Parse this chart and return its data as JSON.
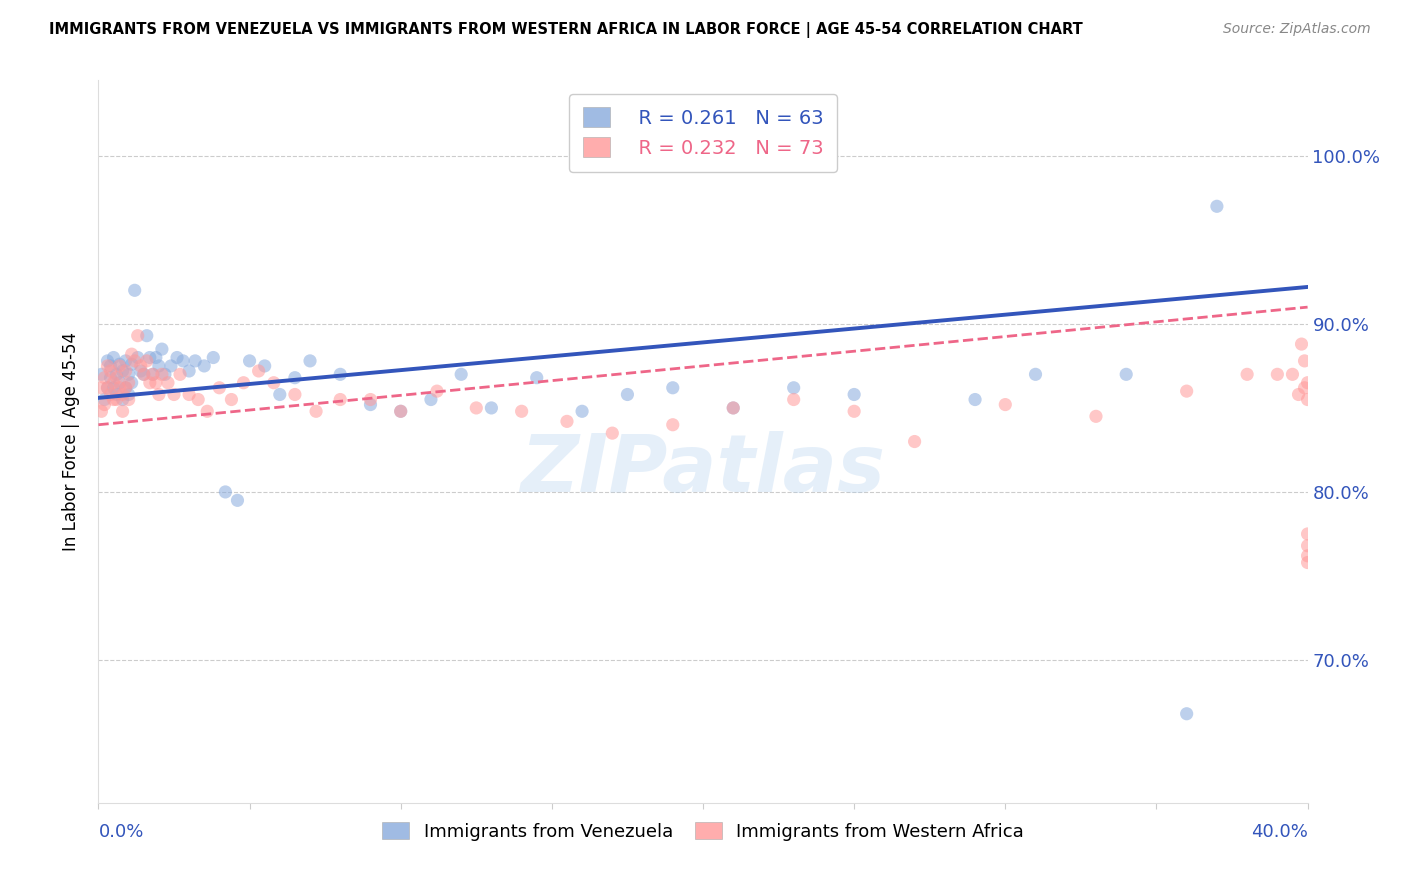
{
  "title": "IMMIGRANTS FROM VENEZUELA VS IMMIGRANTS FROM WESTERN AFRICA IN LABOR FORCE | AGE 45-54 CORRELATION CHART",
  "source": "Source: ZipAtlas.com",
  "ylabel": "In Labor Force | Age 45-54",
  "xlim": [
    0.0,
    0.4
  ],
  "ylim": [
    0.615,
    1.045
  ],
  "yticks": [
    0.7,
    0.8,
    0.9,
    1.0
  ],
  "ytick_labels": [
    "70.0%",
    "80.0%",
    "90.0%",
    "100.0%"
  ],
  "watermark": "ZIPatlas",
  "blue_color": "#88AADD",
  "pink_color": "#FF9999",
  "blue_line_color": "#3355BB",
  "pink_line_color": "#EE6688",
  "axis_color": "#3355BB",
  "legend_R_blue": "R = 0.261",
  "legend_N_blue": "N = 63",
  "legend_R_pink": "R = 0.232",
  "legend_N_pink": "N = 73",
  "ven_x": [
    0.001,
    0.002,
    0.003,
    0.003,
    0.004,
    0.004,
    0.005,
    0.005,
    0.006,
    0.006,
    0.007,
    0.007,
    0.008,
    0.008,
    0.009,
    0.009,
    0.01,
    0.01,
    0.011,
    0.011,
    0.012,
    0.013,
    0.014,
    0.015,
    0.016,
    0.017,
    0.018,
    0.019,
    0.02,
    0.021,
    0.022,
    0.024,
    0.026,
    0.028,
    0.03,
    0.032,
    0.035,
    0.038,
    0.042,
    0.046,
    0.05,
    0.055,
    0.06,
    0.065,
    0.07,
    0.08,
    0.09,
    0.1,
    0.11,
    0.12,
    0.13,
    0.145,
    0.16,
    0.175,
    0.19,
    0.21,
    0.23,
    0.25,
    0.29,
    0.31,
    0.34,
    0.36,
    0.37
  ],
  "ven_y": [
    0.87,
    0.855,
    0.878,
    0.862,
    0.875,
    0.868,
    0.862,
    0.88,
    0.87,
    0.858,
    0.876,
    0.865,
    0.872,
    0.855,
    0.878,
    0.862,
    0.87,
    0.858,
    0.876,
    0.865,
    0.92,
    0.88,
    0.872,
    0.87,
    0.893,
    0.88,
    0.87,
    0.88,
    0.875,
    0.885,
    0.87,
    0.875,
    0.88,
    0.878,
    0.872,
    0.878,
    0.875,
    0.88,
    0.8,
    0.795,
    0.878,
    0.875,
    0.858,
    0.868,
    0.878,
    0.87,
    0.852,
    0.848,
    0.855,
    0.87,
    0.85,
    0.868,
    0.848,
    0.858,
    0.862,
    0.85,
    0.862,
    0.858,
    0.855,
    0.87,
    0.87,
    0.668,
    0.97
  ],
  "waf_x": [
    0.001,
    0.001,
    0.002,
    0.002,
    0.003,
    0.003,
    0.004,
    0.004,
    0.005,
    0.005,
    0.006,
    0.006,
    0.007,
    0.007,
    0.008,
    0.008,
    0.009,
    0.009,
    0.01,
    0.01,
    0.011,
    0.012,
    0.013,
    0.014,
    0.015,
    0.016,
    0.017,
    0.018,
    0.019,
    0.02,
    0.021,
    0.023,
    0.025,
    0.027,
    0.03,
    0.033,
    0.036,
    0.04,
    0.044,
    0.048,
    0.053,
    0.058,
    0.065,
    0.072,
    0.08,
    0.09,
    0.1,
    0.112,
    0.125,
    0.14,
    0.155,
    0.17,
    0.19,
    0.21,
    0.23,
    0.25,
    0.27,
    0.3,
    0.33,
    0.36,
    0.38,
    0.39,
    0.395,
    0.397,
    0.398,
    0.399,
    0.399,
    0.4,
    0.4,
    0.4,
    0.4,
    0.4,
    0.4
  ],
  "waf_y": [
    0.862,
    0.848,
    0.868,
    0.852,
    0.875,
    0.862,
    0.858,
    0.872,
    0.855,
    0.865,
    0.868,
    0.855,
    0.875,
    0.862,
    0.858,
    0.848,
    0.872,
    0.862,
    0.855,
    0.865,
    0.882,
    0.878,
    0.893,
    0.875,
    0.87,
    0.878,
    0.865,
    0.87,
    0.865,
    0.858,
    0.87,
    0.865,
    0.858,
    0.87,
    0.858,
    0.855,
    0.848,
    0.862,
    0.855,
    0.865,
    0.872,
    0.865,
    0.858,
    0.848,
    0.855,
    0.855,
    0.848,
    0.86,
    0.85,
    0.848,
    0.842,
    0.835,
    0.84,
    0.85,
    0.855,
    0.848,
    0.83,
    0.852,
    0.845,
    0.86,
    0.87,
    0.87,
    0.87,
    0.858,
    0.888,
    0.878,
    0.862,
    0.855,
    0.865,
    0.775,
    0.768,
    0.762,
    0.758
  ]
}
